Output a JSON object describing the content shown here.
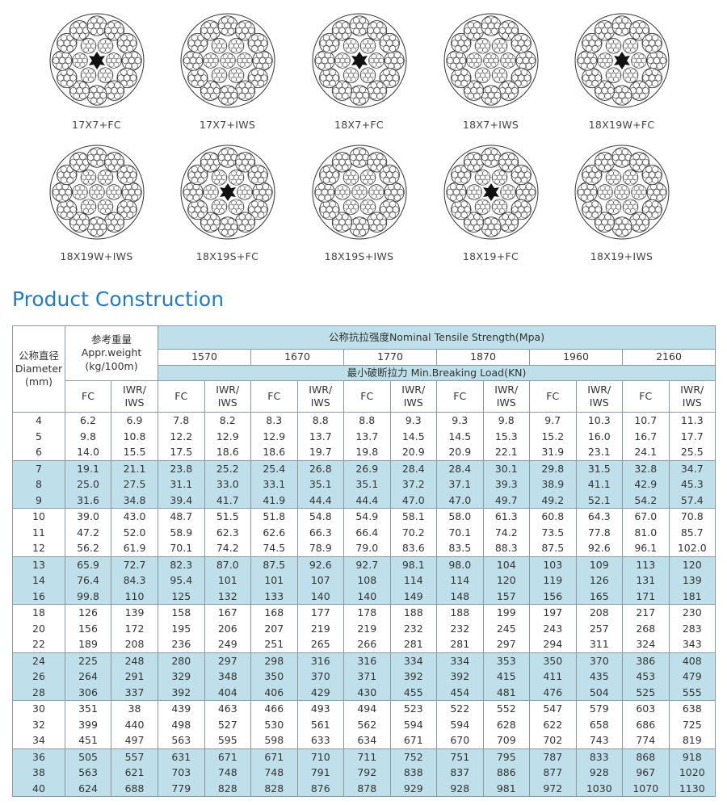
{
  "ropes": [
    {
      "label": "17X7+FC",
      "core": "fc"
    },
    {
      "label": "17X7+IWS",
      "core": "iws"
    },
    {
      "label": "18X7+FC",
      "core": "fc"
    },
    {
      "label": "18X7+IWS",
      "core": "iws"
    },
    {
      "label": "18X19W+FC",
      "core": "fc"
    },
    {
      "label": "18X19W+IWS",
      "core": "iws"
    },
    {
      "label": "18X19S+FC",
      "core": "fc"
    },
    {
      "label": "18X19S+IWS",
      "core": "iws"
    },
    {
      "label": "18X19+FC",
      "core": "fc"
    },
    {
      "label": "18X19+IWS",
      "core": "iws"
    }
  ],
  "heading": "Product Construction",
  "table": {
    "diameter_header": [
      "公称直径",
      "Diameter",
      "(mm)"
    ],
    "weight_header": [
      "参考重量",
      "Appr.weight",
      "(kg/100m)"
    ],
    "tensile_header": "公称抗拉强度Nominal Tensile Strength(Mpa)",
    "grades": [
      "1570",
      "1670",
      "1770",
      "1870",
      "1960",
      "2160"
    ],
    "load_header": "最小破断拉力 Min.Breaking Load(KN)",
    "sub_headers": [
      [
        "FC"
      ],
      [
        "IWR/",
        "IWS"
      ],
      [
        "FC"
      ],
      [
        "IWR/",
        "IWS"
      ],
      [
        "FC"
      ],
      [
        "IWR/",
        "IWS"
      ],
      [
        "FC"
      ],
      [
        "IWR/",
        "IWS"
      ],
      [
        "FC"
      ],
      [
        "IWR/",
        "IWS"
      ],
      [
        "FC"
      ],
      [
        "IWR/",
        "IWS"
      ],
      [
        "FC"
      ],
      [
        "IWR/",
        "IWS"
      ]
    ],
    "rows": [
      [
        "4",
        "6.2",
        "6.9",
        "7.8",
        "8.2",
        "8.3",
        "8.8",
        "8.8",
        "9.3",
        "9.3",
        "9.8",
        "9.7",
        "10.3",
        "10.7",
        "11.3"
      ],
      [
        "5",
        "9.8",
        "10.8",
        "12.2",
        "12.9",
        "12.9",
        "13.7",
        "13.7",
        "14.5",
        "14.5",
        "15.3",
        "15.2",
        "16.0",
        "16.7",
        "17.7"
      ],
      [
        "6",
        "14.0",
        "15.5",
        "17.5",
        "18.6",
        "18.6",
        "19.7",
        "19.8",
        "20.9",
        "20.9",
        "22.1",
        "31.9",
        "23.1",
        "24.1",
        "25.5"
      ],
      [
        "7",
        "19.1",
        "21.1",
        "23.8",
        "25.2",
        "25.4",
        "26.8",
        "26.9",
        "28.4",
        "28.4",
        "30.1",
        "29.8",
        "31.5",
        "32.8",
        "34.7"
      ],
      [
        "8",
        "25.0",
        "27.5",
        "31.1",
        "33.0",
        "33.1",
        "35.1",
        "35.1",
        "37.2",
        "37.1",
        "39.3",
        "38.9",
        "41.1",
        "42.9",
        "45.3"
      ],
      [
        "9",
        "31.6",
        "34.8",
        "39.4",
        "41.7",
        "41.9",
        "44.4",
        "44.4",
        "47.0",
        "47.0",
        "49.7",
        "49.2",
        "52.1",
        "54.2",
        "57.4"
      ],
      [
        "10",
        "39.0",
        "43.0",
        "48.7",
        "51.5",
        "51.8",
        "54.8",
        "54.9",
        "58.1",
        "58.0",
        "61.3",
        "60.8",
        "64.3",
        "67.0",
        "70.8"
      ],
      [
        "11",
        "47.2",
        "52.0",
        "58.9",
        "62.3",
        "62.6",
        "66.3",
        "66.4",
        "70.2",
        "70.1",
        "74.2",
        "73.5",
        "77.8",
        "81.0",
        "85.7"
      ],
      [
        "12",
        "56.2",
        "61.9",
        "70.1",
        "74.2",
        "74.5",
        "78.9",
        "79.0",
        "83.6",
        "83.5",
        "88.3",
        "87.5",
        "92.6",
        "96.1",
        "102.0"
      ],
      [
        "13",
        "65.9",
        "72.7",
        "82.3",
        "87.0",
        "87.5",
        "92.6",
        "92.7",
        "98.1",
        "98.0",
        "104",
        "103",
        "109",
        "113",
        "120"
      ],
      [
        "14",
        "76.4",
        "84.3",
        "95.4",
        "101",
        "101",
        "107",
        "108",
        "114",
        "114",
        "120",
        "119",
        "126",
        "131",
        "139"
      ],
      [
        "16",
        "99.8",
        "110",
        "125",
        "132",
        "133",
        "140",
        "140",
        "149",
        "148",
        "157",
        "156",
        "165",
        "171",
        "181"
      ],
      [
        "18",
        "126",
        "139",
        "158",
        "167",
        "168",
        "177",
        "178",
        "188",
        "188",
        "199",
        "197",
        "208",
        "217",
        "230"
      ],
      [
        "20",
        "156",
        "172",
        "195",
        "206",
        "207",
        "219",
        "219",
        "232",
        "232",
        "245",
        "243",
        "257",
        "268",
        "283"
      ],
      [
        "22",
        "189",
        "208",
        "236",
        "249",
        "251",
        "265",
        "266",
        "281",
        "281",
        "297",
        "294",
        "311",
        "324",
        "343"
      ],
      [
        "24",
        "225",
        "248",
        "280",
        "297",
        "298",
        "316",
        "316",
        "334",
        "334",
        "353",
        "350",
        "370",
        "386",
        "408"
      ],
      [
        "26",
        "264",
        "291",
        "329",
        "348",
        "350",
        "370",
        "371",
        "392",
        "392",
        "415",
        "411",
        "435",
        "453",
        "479"
      ],
      [
        "28",
        "306",
        "337",
        "392",
        "404",
        "406",
        "429",
        "430",
        "455",
        "454",
        "481",
        "476",
        "504",
        "525",
        "555"
      ],
      [
        "30",
        "351",
        "38",
        "439",
        "463",
        "466",
        "493",
        "494",
        "523",
        "522",
        "552",
        "547",
        "579",
        "603",
        "638"
      ],
      [
        "32",
        "399",
        "440",
        "498",
        "527",
        "530",
        "561",
        "562",
        "594",
        "594",
        "628",
        "622",
        "658",
        "686",
        "725"
      ],
      [
        "34",
        "451",
        "497",
        "563",
        "595",
        "598",
        "633",
        "634",
        "671",
        "670",
        "709",
        "702",
        "743",
        "774",
        "819"
      ],
      [
        "36",
        "505",
        "557",
        "631",
        "671",
        "671",
        "710",
        "711",
        "752",
        "751",
        "795",
        "787",
        "833",
        "868",
        "918"
      ],
      [
        "38",
        "563",
        "621",
        "703",
        "748",
        "748",
        "791",
        "792",
        "838",
        "837",
        "886",
        "877",
        "928",
        "967",
        "1020"
      ],
      [
        "40",
        "624",
        "688",
        "779",
        "828",
        "828",
        "876",
        "878",
        "929",
        "928",
        "981",
        "972",
        "1030",
        "1070",
        "1130"
      ]
    ]
  }
}
